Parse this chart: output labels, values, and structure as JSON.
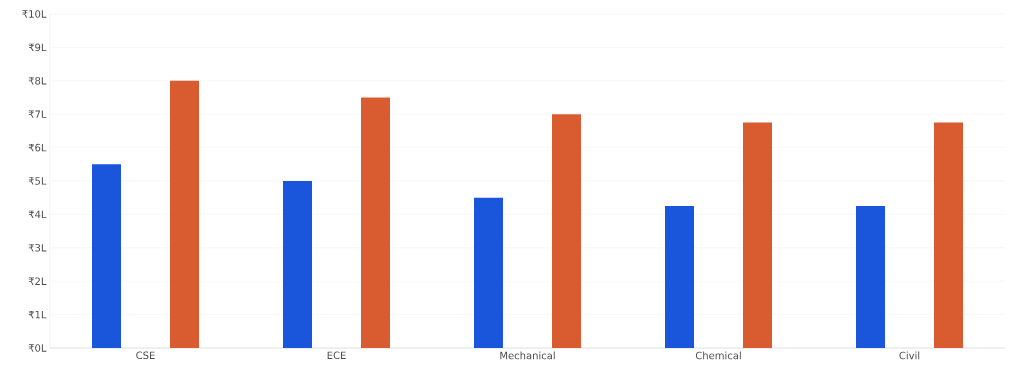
{
  "chart_data": {
    "type": "bar",
    "categories": [
      "CSE",
      "ECE",
      "Mechanical",
      "Chemical",
      "Civil"
    ],
    "series": [
      {
        "color": "#1a56db",
        "values": [
          5.5,
          5,
          4.5,
          4.25,
          4.25
        ]
      },
      {
        "color": "#d95b30",
        "values": [
          8,
          7.5,
          7,
          6.75,
          6.75
        ]
      }
    ],
    "ylim": [
      0,
      10
    ],
    "yticks": [
      {
        "value": 0,
        "label": "₹0L"
      },
      {
        "value": 1,
        "label": "₹1L"
      },
      {
        "value": 2,
        "label": "₹2L"
      },
      {
        "value": 3,
        "label": "₹3L"
      },
      {
        "value": 4,
        "label": "₹4L"
      },
      {
        "value": 5,
        "label": "₹5L"
      },
      {
        "value": 6,
        "label": "₹6L"
      },
      {
        "value": 7,
        "label": "₹7L"
      },
      {
        "value": 8,
        "label": "₹8L"
      },
      {
        "value": 9,
        "label": "₹9L"
      },
      {
        "value": 10,
        "label": "₹10L"
      }
    ],
    "grid": "y",
    "legend": false
  }
}
